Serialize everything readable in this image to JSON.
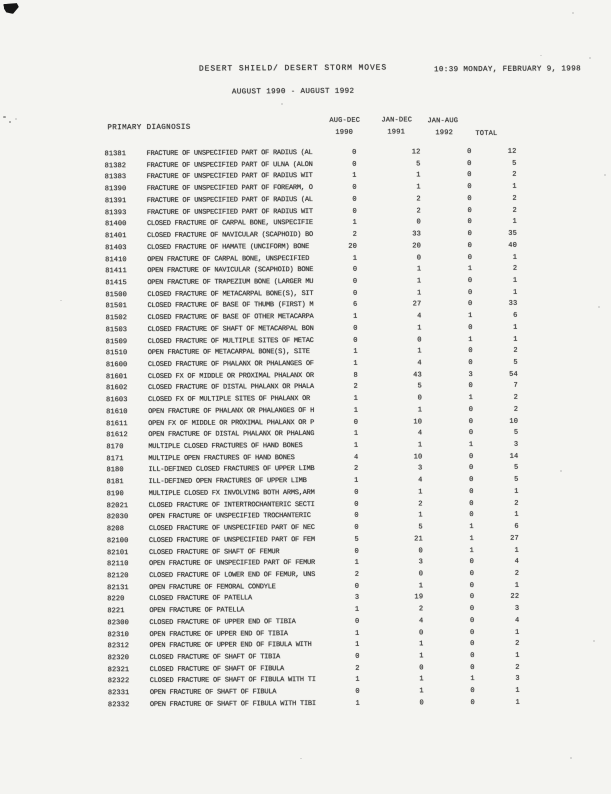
{
  "page": {
    "title": "DESERT SHIELD/ DESERT STORM MOVES",
    "timestamp": "10:39 MONDAY, FEBRUARY 9, 1998",
    "subtitle": "AUGUST 1990 - AUGUST 1992"
  },
  "table": {
    "headers": {
      "diagnosis": "PRIMARY DIAGNOSIS",
      "col1_line1": "AUG-DEC",
      "col1_line2": "1990",
      "col2_line1": "JAN-DEC",
      "col2_line2": "1991",
      "col3_line1": "JAN-AUG",
      "col3_line2": "1992",
      "total": "TOTAL"
    },
    "rows": [
      {
        "code": "81381",
        "diagnosis": "FRACTURE OF UNSPECIFIED PART OF RADIUS (AL",
        "v1990": 0,
        "v1991": 12,
        "v1992": 0,
        "total": 12
      },
      {
        "code": "81382",
        "diagnosis": "FRACTURE OF UNSPECIFIED PART OF ULNA (ALON",
        "v1990": 0,
        "v1991": 5,
        "v1992": 0,
        "total": 5
      },
      {
        "code": "81383",
        "diagnosis": "FRACTURE OF UNSPECIFIED PART OF RADIUS WIT",
        "v1990": 1,
        "v1991": 1,
        "v1992": 0,
        "total": 2
      },
      {
        "code": "81390",
        "diagnosis": "FRACTURE OF UNSPECIFIED PART OF FOREARM, O",
        "v1990": 0,
        "v1991": 1,
        "v1992": 0,
        "total": 1
      },
      {
        "code": "81391",
        "diagnosis": "FRACTURE OF UNSPECIFIED PART OF RADIUS (AL",
        "v1990": 0,
        "v1991": 2,
        "v1992": 0,
        "total": 2
      },
      {
        "code": "81393",
        "diagnosis": "FRACTURE OF UNSPECIFIED PART OF RADIUS WIT",
        "v1990": 0,
        "v1991": 2,
        "v1992": 0,
        "total": 2
      },
      {
        "code": "81400",
        "diagnosis": "CLOSED FRACTURE OF CARPAL BONE, UNSPECIFIE",
        "v1990": 1,
        "v1991": 0,
        "v1992": 0,
        "total": 1
      },
      {
        "code": "81401",
        "diagnosis": "CLOSED FRACTURE OF NAVICULAR (SCAPHOID) BO",
        "v1990": 2,
        "v1991": 33,
        "v1992": 0,
        "total": 35
      },
      {
        "code": "81403",
        "diagnosis": "CLOSED FRACTURE OF HAMATE (UNCIFORM) BONE",
        "v1990": 20,
        "v1991": 20,
        "v1992": 0,
        "total": 40
      },
      {
        "code": "81410",
        "diagnosis": "OPEN FRACTURE OF CARPAL BONE, UNSPECIFIED",
        "v1990": 1,
        "v1991": 0,
        "v1992": 0,
        "total": 1
      },
      {
        "code": "81411",
        "diagnosis": "OPEN FRACTURE OF NAVICULAR (SCAPHOID) BONE",
        "v1990": 0,
        "v1991": 1,
        "v1992": 1,
        "total": 2
      },
      {
        "code": "81415",
        "diagnosis": "OPEN FRACTURE OF TRAPEZIUM BONE (LARGER MU",
        "v1990": 0,
        "v1991": 1,
        "v1992": 0,
        "total": 1
      },
      {
        "code": "81500",
        "diagnosis": "CLOSED FRACTURE OF METACARPAL BONE(S), SIT",
        "v1990": 0,
        "v1991": 1,
        "v1992": 0,
        "total": 1
      },
      {
        "code": "81501",
        "diagnosis": "CLOSED FRACTURE OF BASE OF THUMB (FIRST) M",
        "v1990": 6,
        "v1991": 27,
        "v1992": 0,
        "total": 33
      },
      {
        "code": "81502",
        "diagnosis": "CLOSED FRACTURE OF BASE OF OTHER METACARPA",
        "v1990": 1,
        "v1991": 4,
        "v1992": 1,
        "total": 6
      },
      {
        "code": "81503",
        "diagnosis": "CLOSED FRACTURE OF SHAFT OF METACARPAL BON",
        "v1990": 0,
        "v1991": 1,
        "v1992": 0,
        "total": 1
      },
      {
        "code": "81509",
        "diagnosis": "CLOSED FRACTURE OF MULTIPLE SITES OF METAC",
        "v1990": 0,
        "v1991": 0,
        "v1992": 1,
        "total": 1
      },
      {
        "code": "81510",
        "diagnosis": "OPEN FRACTURE OF METACARPAL BONE(S), SITE",
        "v1990": 1,
        "v1991": 1,
        "v1992": 0,
        "total": 2
      },
      {
        "code": "81600",
        "diagnosis": "CLOSED FRACTURE OF PHALANX OR PHALANGES OF",
        "v1990": 1,
        "v1991": 4,
        "v1992": 0,
        "total": 5
      },
      {
        "code": "81601",
        "diagnosis": "CLOSED FX OF MIDDLE OR PROXIMAL PHALANX OR",
        "v1990": 8,
        "v1991": 43,
        "v1992": 3,
        "total": 54
      },
      {
        "code": "81602",
        "diagnosis": "CLOSED FRACTURE OF DISTAL PHALANX OR PHALA",
        "v1990": 2,
        "v1991": 5,
        "v1992": 0,
        "total": 7
      },
      {
        "code": "81603",
        "diagnosis": "CLOSED FX OF MULTIPLE SITES OF PHALANX OR",
        "v1990": 1,
        "v1991": 0,
        "v1992": 1,
        "total": 2
      },
      {
        "code": "81610",
        "diagnosis": "OPEN FRACTURE OF PHALANX OR PHALANGES OF H",
        "v1990": 1,
        "v1991": 1,
        "v1992": 0,
        "total": 2
      },
      {
        "code": "81611",
        "diagnosis": "OPEN FX OF MIDDLE OR PROXIMAL PHALANX OR P",
        "v1990": 0,
        "v1991": 10,
        "v1992": 0,
        "total": 10
      },
      {
        "code": "81612",
        "diagnosis": "OPEN FRACTURE OF DISTAL PHALANX OR PHALANG",
        "v1990": 1,
        "v1991": 4,
        "v1992": 0,
        "total": 5
      },
      {
        "code": "8170",
        "diagnosis": "MULTIPLE CLOSED FRACTURES OF HAND BONES",
        "v1990": 1,
        "v1991": 1,
        "v1992": 1,
        "total": 3
      },
      {
        "code": "8171",
        "diagnosis": "MULTIPLE OPEN FRACTURES OF HAND BONES",
        "v1990": 4,
        "v1991": 10,
        "v1992": 0,
        "total": 14
      },
      {
        "code": "8180",
        "diagnosis": "ILL-DEFINED CLOSED FRACTURES OF UPPER LIMB",
        "v1990": 2,
        "v1991": 3,
        "v1992": 0,
        "total": 5
      },
      {
        "code": "8181",
        "diagnosis": "ILL-DEFINED OPEN FRACTURES OF UPPER LIMB",
        "v1990": 1,
        "v1991": 4,
        "v1992": 0,
        "total": 5
      },
      {
        "code": "8190",
        "diagnosis": "MULTIPLE CLOSED FX INVOLVING BOTH ARMS,ARM",
        "v1990": 0,
        "v1991": 1,
        "v1992": 0,
        "total": 1
      },
      {
        "code": "82021",
        "diagnosis": "CLOSED FRACTURE OF INTERTROCHANTERIC SECTI",
        "v1990": 0,
        "v1991": 2,
        "v1992": 0,
        "total": 2
      },
      {
        "code": "82030",
        "diagnosis": "OPEN FRACTURE OF UNSPECIFIED TROCHANTERIC",
        "v1990": 0,
        "v1991": 1,
        "v1992": 0,
        "total": 1
      },
      {
        "code": "8208",
        "diagnosis": "CLOSED FRACTURE OF UNSPECIFIED PART OF NEC",
        "v1990": 0,
        "v1991": 5,
        "v1992": 1,
        "total": 6
      },
      {
        "code": "82100",
        "diagnosis": "CLOSED FRACTURE OF UNSPECIFIED PART OF FEM",
        "v1990": 5,
        "v1991": 21,
        "v1992": 1,
        "total": 27
      },
      {
        "code": "82101",
        "diagnosis": "CLOSED FRACTURE OF SHAFT OF FEMUR",
        "v1990": 0,
        "v1991": 0,
        "v1992": 1,
        "total": 1
      },
      {
        "code": "82110",
        "diagnosis": "OPEN FRACTURE OF UNSPECIFIED PART OF FEMUR",
        "v1990": 1,
        "v1991": 3,
        "v1992": 0,
        "total": 4
      },
      {
        "code": "82120",
        "diagnosis": "CLOSED FRACTURE OF LOWER END OF FEMUR, UNS",
        "v1990": 2,
        "v1991": 0,
        "v1992": 0,
        "total": 2
      },
      {
        "code": "82131",
        "diagnosis": "OPEN FRACTURE OF FEMORAL CONDYLE",
        "v1990": 0,
        "v1991": 1,
        "v1992": 0,
        "total": 1
      },
      {
        "code": "8220",
        "diagnosis": "CLOSED FRACTURE OF PATELLA",
        "v1990": 3,
        "v1991": 19,
        "v1992": 0,
        "total": 22
      },
      {
        "code": "8221",
        "diagnosis": "OPEN FRACTURE OF PATELLA",
        "v1990": 1,
        "v1991": 2,
        "v1992": 0,
        "total": 3
      },
      {
        "code": "82300",
        "diagnosis": "CLOSED FRACTURE OF UPPER END OF TIBIA",
        "v1990": 0,
        "v1991": 4,
        "v1992": 0,
        "total": 4
      },
      {
        "code": "82310",
        "diagnosis": "OPEN FRACTURE OF UPPER END OF TIBIA",
        "v1990": 1,
        "v1991": 0,
        "v1992": 0,
        "total": 1
      },
      {
        "code": "82312",
        "diagnosis": "OPEN FRACTURE OF UPPER END OF FIBULA WITH",
        "v1990": 1,
        "v1991": 1,
        "v1992": 0,
        "total": 2
      },
      {
        "code": "82320",
        "diagnosis": "CLOSED FRACTURE OF SHAFT OF TIBIA",
        "v1990": 0,
        "v1991": 1,
        "v1992": 0,
        "total": 1
      },
      {
        "code": "82321",
        "diagnosis": "CLOSED FRACTURE OF SHAFT OF FIBULA",
        "v1990": 2,
        "v1991": 0,
        "v1992": 0,
        "total": 2
      },
      {
        "code": "82322",
        "diagnosis": "CLOSED FRACTURE OF SHAFT OF FIBULA WITH TI",
        "v1990": 1,
        "v1991": 1,
        "v1992": 1,
        "total": 3
      },
      {
        "code": "82331",
        "diagnosis": "OPEN FRACTURE OF SHAFT OF FIBULA",
        "v1990": 0,
        "v1991": 1,
        "v1992": 0,
        "total": 1
      },
      {
        "code": "82332",
        "diagnosis": "OPEN FRACTURE OF SHAFT OF FIBULA WITH TIBI",
        "v1990": 1,
        "v1991": 0,
        "v1992": 0,
        "total": 1
      }
    ]
  }
}
